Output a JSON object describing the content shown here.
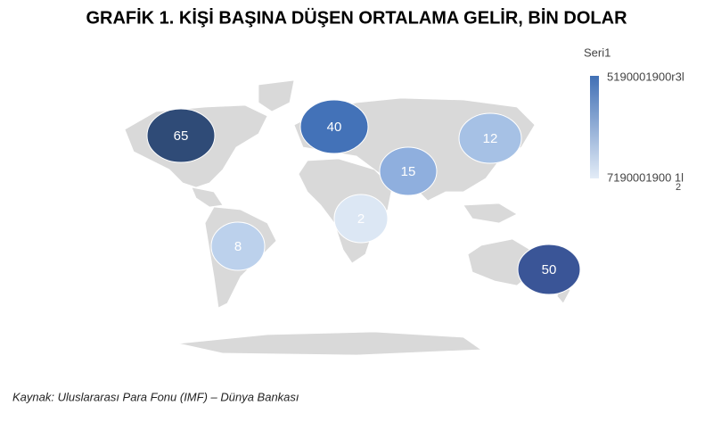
{
  "chart_data": {
    "type": "bubble-map",
    "title": "GRAFİK 1. KİŞİ BAŞINA DÜŞEN ORTALAMA GELİR, BİN DOLAR",
    "values": [
      65,
      40,
      12,
      15,
      2,
      8,
      50
    ],
    "colors": [
      "#2f4b77",
      "#4372b8",
      "#a6c1e5",
      "#8fafde",
      "#dce7f4",
      "#bcd1ec",
      "#3a5597"
    ],
    "legend": {
      "title": "Seri1",
      "max_label": "5190001900r3l",
      "min_label": "7190001900 1l",
      "note": "2",
      "max_color": "#4170b5",
      "min_color": "#e3ecf7"
    },
    "source": "Kaynak: Uluslararası Para Fonu (IMF) – Dünya Bankası"
  }
}
